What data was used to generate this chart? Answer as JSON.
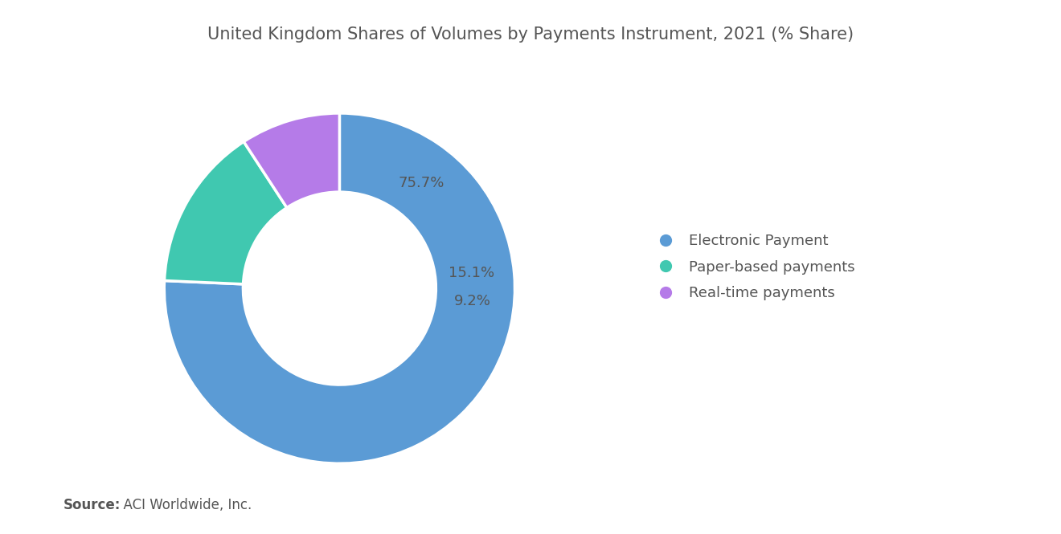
{
  "title": "United Kingdom Shares of Volumes by Payments Instrument, 2021 (% Share)",
  "slices": [
    75.7,
    15.1,
    9.2
  ],
  "labels": [
    "75.7%",
    "15.1%",
    "9.2%"
  ],
  "legend_labels": [
    "Electronic Payment",
    "Paper-based payments",
    "Real-time payments"
  ],
  "colors": [
    "#5b9bd5",
    "#40c8b0",
    "#b57be8"
  ],
  "label_color": "#555555",
  "background_color": "#ffffff",
  "source_bold": "Source:",
  "source_rest": "  ACI Worldwide, Inc.",
  "title_fontsize": 15,
  "label_fontsize": 13,
  "legend_fontsize": 13,
  "source_fontsize": 12,
  "donut_width": 0.45
}
